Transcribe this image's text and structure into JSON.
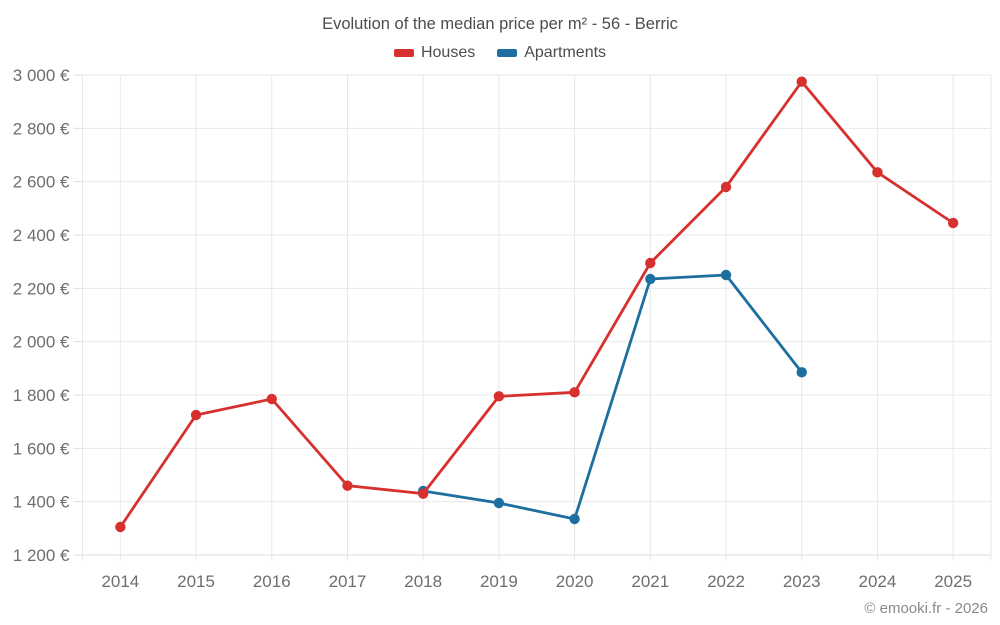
{
  "header": {
    "title": "Evolution of the median price per m² - 56 - Berric"
  },
  "legend": {
    "items": [
      {
        "label": "Houses",
        "color": "#d7312f"
      },
      {
        "label": "Apartments",
        "color": "#1d6fa0"
      }
    ]
  },
  "footer": {
    "attribution": "© emooki.fr - 2026"
  },
  "colors": {
    "houses": "#d7312f",
    "apartments": "#1d6fa0",
    "gridline": "#e8e8e8",
    "axis_line": "#dcdcdc",
    "tick_label": "#6e6e6e",
    "title_text": "#4d4d4d",
    "attribution_text": "#8a8a8a"
  },
  "chart_data": {
    "type": "line",
    "title": "Evolution of the median price per m² - 56 - Berric",
    "xlabel": "",
    "ylabel": "",
    "x": [
      "2014",
      "2015",
      "2016",
      "2017",
      "2018",
      "2019",
      "2020",
      "2021",
      "2022",
      "2023",
      "2024",
      "2025"
    ],
    "series": [
      {
        "name": "Houses",
        "color": "#d7312f",
        "values": [
          1305,
          1725,
          1785,
          1460,
          1430,
          1795,
          1810,
          2295,
          2580,
          2975,
          2635,
          2445
        ]
      },
      {
        "name": "Apartments",
        "color": "#1d6fa0",
        "values": [
          null,
          null,
          null,
          null,
          1440,
          1395,
          1335,
          2235,
          2250,
          1885,
          null,
          null
        ]
      }
    ],
    "ylim": [
      1200,
      3000
    ],
    "yticks": [
      {
        "value": 1200,
        "label": "1 200 €"
      },
      {
        "value": 1400,
        "label": "1 400 €"
      },
      {
        "value": 1600,
        "label": "1 600 €"
      },
      {
        "value": 1800,
        "label": "1 800 €"
      },
      {
        "value": 2000,
        "label": "2 000 €"
      },
      {
        "value": 2200,
        "label": "2 200 €"
      },
      {
        "value": 2400,
        "label": "2 400 €"
      },
      {
        "value": 2600,
        "label": "2 600 €"
      },
      {
        "value": 2800,
        "label": "2 800 €"
      },
      {
        "value": 3000,
        "label": "3 000 €"
      }
    ],
    "grid": true,
    "legend_position": "top",
    "attribution": "© emooki.fr - 2026"
  }
}
